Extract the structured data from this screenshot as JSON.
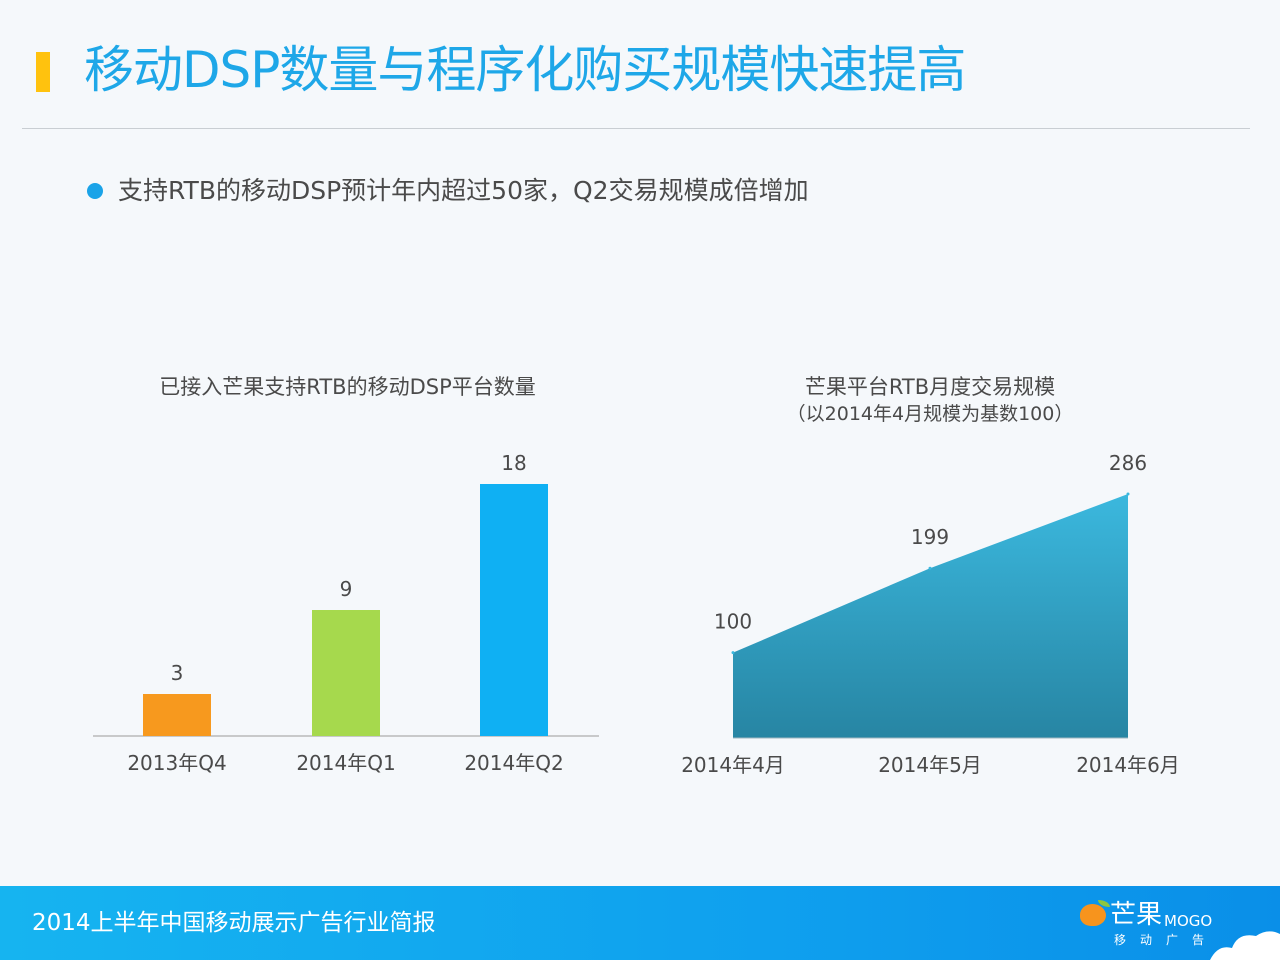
{
  "title": "移动DSP数量与程序化购买规模快速提高",
  "bullet": "支持RTB的移动DSP预计年内超过50家，Q2交易规模成倍增加",
  "footer": {
    "report": "2014上半年中国移动展示广告行业简报",
    "logo_cn": "芒果",
    "logo_en": "MOGO",
    "logo_sub": "移动广告"
  },
  "colors": {
    "title": "#1ea7e8",
    "accent_bar": "#ffc20e",
    "bar_q4": "#f7991e",
    "bar_q1": "#a6d94d",
    "bar_q2": "#0fb0f3",
    "area_top": "#3bb8de",
    "area_bottom": "#2785a3"
  },
  "chart_data": [
    {
      "type": "bar",
      "title": "已接入芒果支持RTB的移动DSP平台数量",
      "categories": [
        "2013年Q4",
        "2014年Q1",
        "2014年Q2"
      ],
      "values": [
        3,
        9,
        18
      ],
      "data_labels": [
        "3",
        "9",
        "18"
      ],
      "ylim": [
        0,
        18
      ],
      "grid": false,
      "legend": "none"
    },
    {
      "type": "area",
      "title": "芒果平台RTB月度交易规模",
      "subtitle": "（以2014年4月规模为基数100）",
      "categories": [
        "2014年4月",
        "2014年5月",
        "2014年6月"
      ],
      "values": [
        100,
        199,
        286
      ],
      "data_labels": [
        "100",
        "199",
        "286"
      ],
      "ylim": [
        0,
        286
      ],
      "grid": false,
      "legend": "none"
    }
  ]
}
